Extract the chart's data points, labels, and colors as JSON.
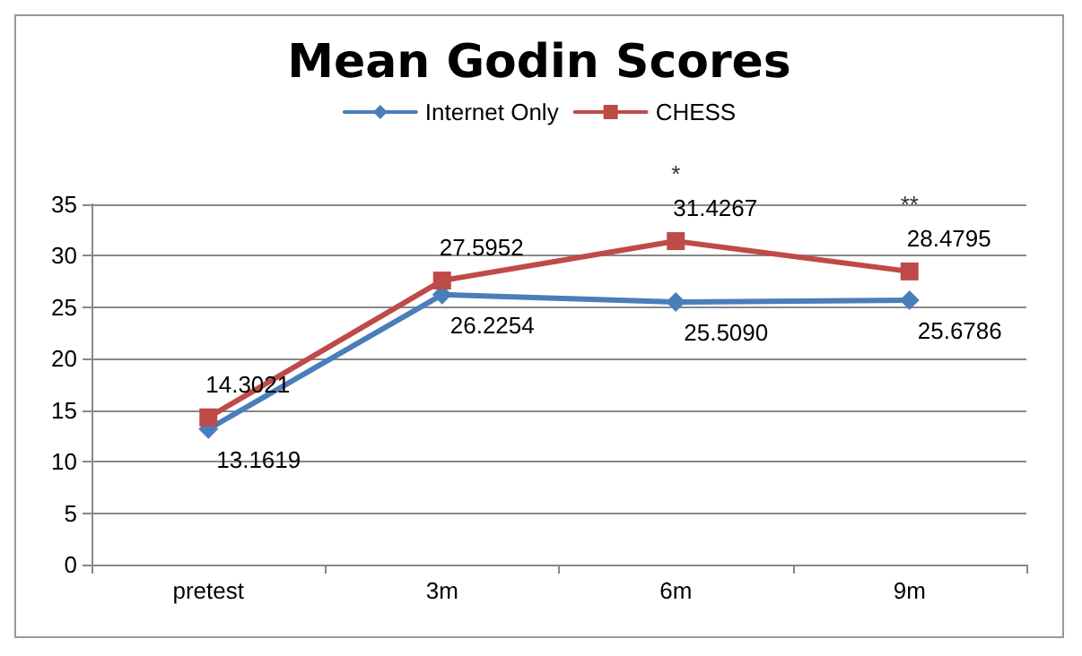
{
  "chart_data": {
    "type": "line",
    "title": "Mean Godin Scores",
    "categories": [
      "pretest",
      "3m",
      "6m",
      "9m"
    ],
    "series": [
      {
        "name": "Internet Only",
        "color": "#4a7ebb",
        "values": [
          13.1619,
          26.2254,
          25.509,
          25.6786
        ],
        "value_labels": [
          "13.1619",
          "26.2254",
          "25.5090",
          "25.6786"
        ],
        "marker": "diamond"
      },
      {
        "name": "CHESS",
        "color": "#be4b48",
        "values": [
          14.3021,
          27.5952,
          31.4267,
          28.4795
        ],
        "value_labels": [
          "14.3021",
          "27.5952",
          "31.4267",
          "28.4795"
        ],
        "marker": "square"
      }
    ],
    "ylim": [
      0,
      35
    ],
    "yticks": [
      0,
      5,
      10,
      15,
      20,
      25,
      30,
      35
    ],
    "grid": "y",
    "legend": "top",
    "line_style": "solid",
    "annotations": [
      {
        "text": "*",
        "x": "6m",
        "y": 31.4267
      },
      {
        "text": "**",
        "x": "9m",
        "y": 28.4795
      }
    ]
  }
}
